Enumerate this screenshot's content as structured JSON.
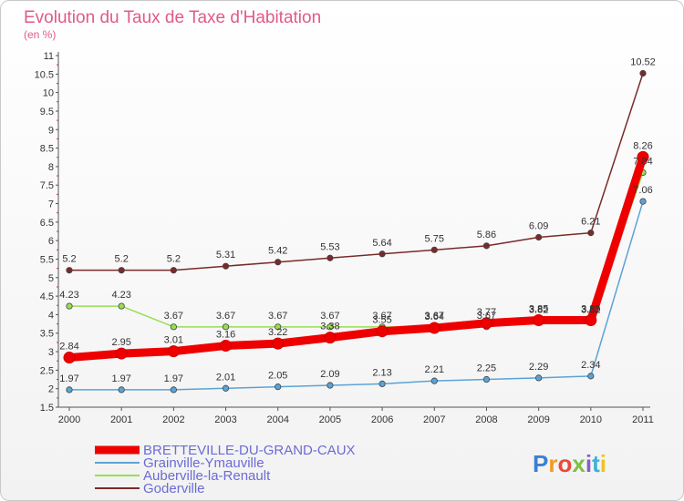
{
  "chart_data": {
    "type": "line",
    "title": "Evolution du Taux de Taxe d'Habitation",
    "subtitle": "(en %)",
    "x": [
      "2000",
      "2001",
      "2002",
      "2003",
      "2004",
      "2005",
      "2006",
      "2007",
      "2008",
      "2009",
      "2010",
      "2011"
    ],
    "y_ticks": [
      "1.5",
      "2",
      "2.5",
      "3",
      "3.5",
      "4",
      "4.5",
      "5",
      "5.5",
      "6",
      "6.5",
      "7",
      "7.5",
      "8",
      "8.5",
      "9",
      "9.5",
      "10",
      "10.5",
      "11"
    ],
    "ylim": [
      1.5,
      11
    ],
    "grid": false,
    "legend_position": "bottom-left",
    "series": [
      {
        "name": "BRETTEVILLE-DU-GRAND-CAUX",
        "color": "#ee0000",
        "values": [
          2.84,
          2.95,
          3.01,
          3.16,
          3.22,
          3.38,
          3.55,
          3.64,
          3.77,
          3.85,
          3.85,
          8.26
        ],
        "labels": [
          "2.84",
          "2.95",
          "3.01",
          "3.16",
          "3.22",
          "3.38",
          "3.55",
          "3.64",
          "3.77",
          "3.85",
          "3.85",
          "8.26"
        ]
      },
      {
        "name": "Grainville-Ymauville",
        "color": "#5ba3d6",
        "values": [
          1.97,
          1.97,
          1.97,
          2.01,
          2.05,
          2.09,
          2.13,
          2.21,
          2.25,
          2.29,
          2.34,
          7.06
        ],
        "labels": [
          "1.97",
          "1.97",
          "1.97",
          "2.01",
          "2.05",
          "2.09",
          "2.13",
          "2.21",
          "2.25",
          "2.29",
          "2.34",
          "7.06"
        ]
      },
      {
        "name": "Auberville-la-Renault",
        "color": "#99dd55",
        "values": [
          4.23,
          4.23,
          3.67,
          3.67,
          3.67,
          3.67,
          3.67,
          3.67,
          3.67,
          3.82,
          3.82,
          7.84
        ],
        "labels": [
          "4.23",
          "4.23",
          "3.67",
          "3.67",
          "3.67",
          "3.67",
          "3.67",
          "3.67",
          "3.67",
          "3.82",
          "3.82",
          "7.84"
        ]
      },
      {
        "name": "Goderville",
        "color": "#7a2a2a",
        "values": [
          5.2,
          5.2,
          5.2,
          5.31,
          5.42,
          5.53,
          5.64,
          5.75,
          5.86,
          6.09,
          6.21,
          10.52
        ],
        "labels": [
          "5.2",
          "5.2",
          "5.2",
          "5.31",
          "5.42",
          "5.53",
          "5.64",
          "5.75",
          "5.86",
          "6.09",
          "6.21",
          "10.52"
        ]
      }
    ]
  },
  "logo": {
    "text": "Proxiti",
    "colors": [
      "#3b7fd4",
      "#f29a1f",
      "#e84a3a",
      "#7bc143",
      "#8a5cc7",
      "#3bb0d8",
      "#f2c21f"
    ]
  }
}
